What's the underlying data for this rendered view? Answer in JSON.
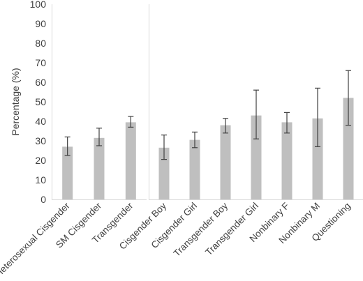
{
  "chart_data": {
    "type": "bar",
    "ylabel": "Percentage (%)",
    "ylim": [
      0,
      100
    ],
    "yticks": [
      0,
      10,
      20,
      30,
      40,
      50,
      60,
      70,
      80,
      90,
      100
    ],
    "grid": false,
    "error_bars": true,
    "bar_color": "#bfbfbf",
    "error_bar_color": "#404040",
    "axis_color": "#d9d9d9",
    "groups": [
      {
        "categories": [
          "Heterosexual Cisgender",
          "SM Cisgender",
          "Transgender"
        ],
        "values": [
          27,
          31.5,
          39.5
        ],
        "error_low": [
          22.5,
          27.5,
          37
        ],
        "error_high": [
          32,
          36.5,
          42.5
        ]
      },
      {
        "categories": [
          "Cisgender Boy",
          "Cisgender Girl",
          "Transgender Boy",
          "Transgender Girl",
          "Nonbinary F",
          "Nonbinary M",
          "Questioning"
        ],
        "values": [
          26.5,
          30.5,
          38,
          43,
          39.5,
          41.5,
          52
        ],
        "error_low": [
          20.5,
          26.5,
          34,
          31,
          34,
          27,
          38
        ],
        "error_high": [
          33,
          34.5,
          41.5,
          56,
          44.5,
          57,
          66
        ]
      }
    ]
  }
}
